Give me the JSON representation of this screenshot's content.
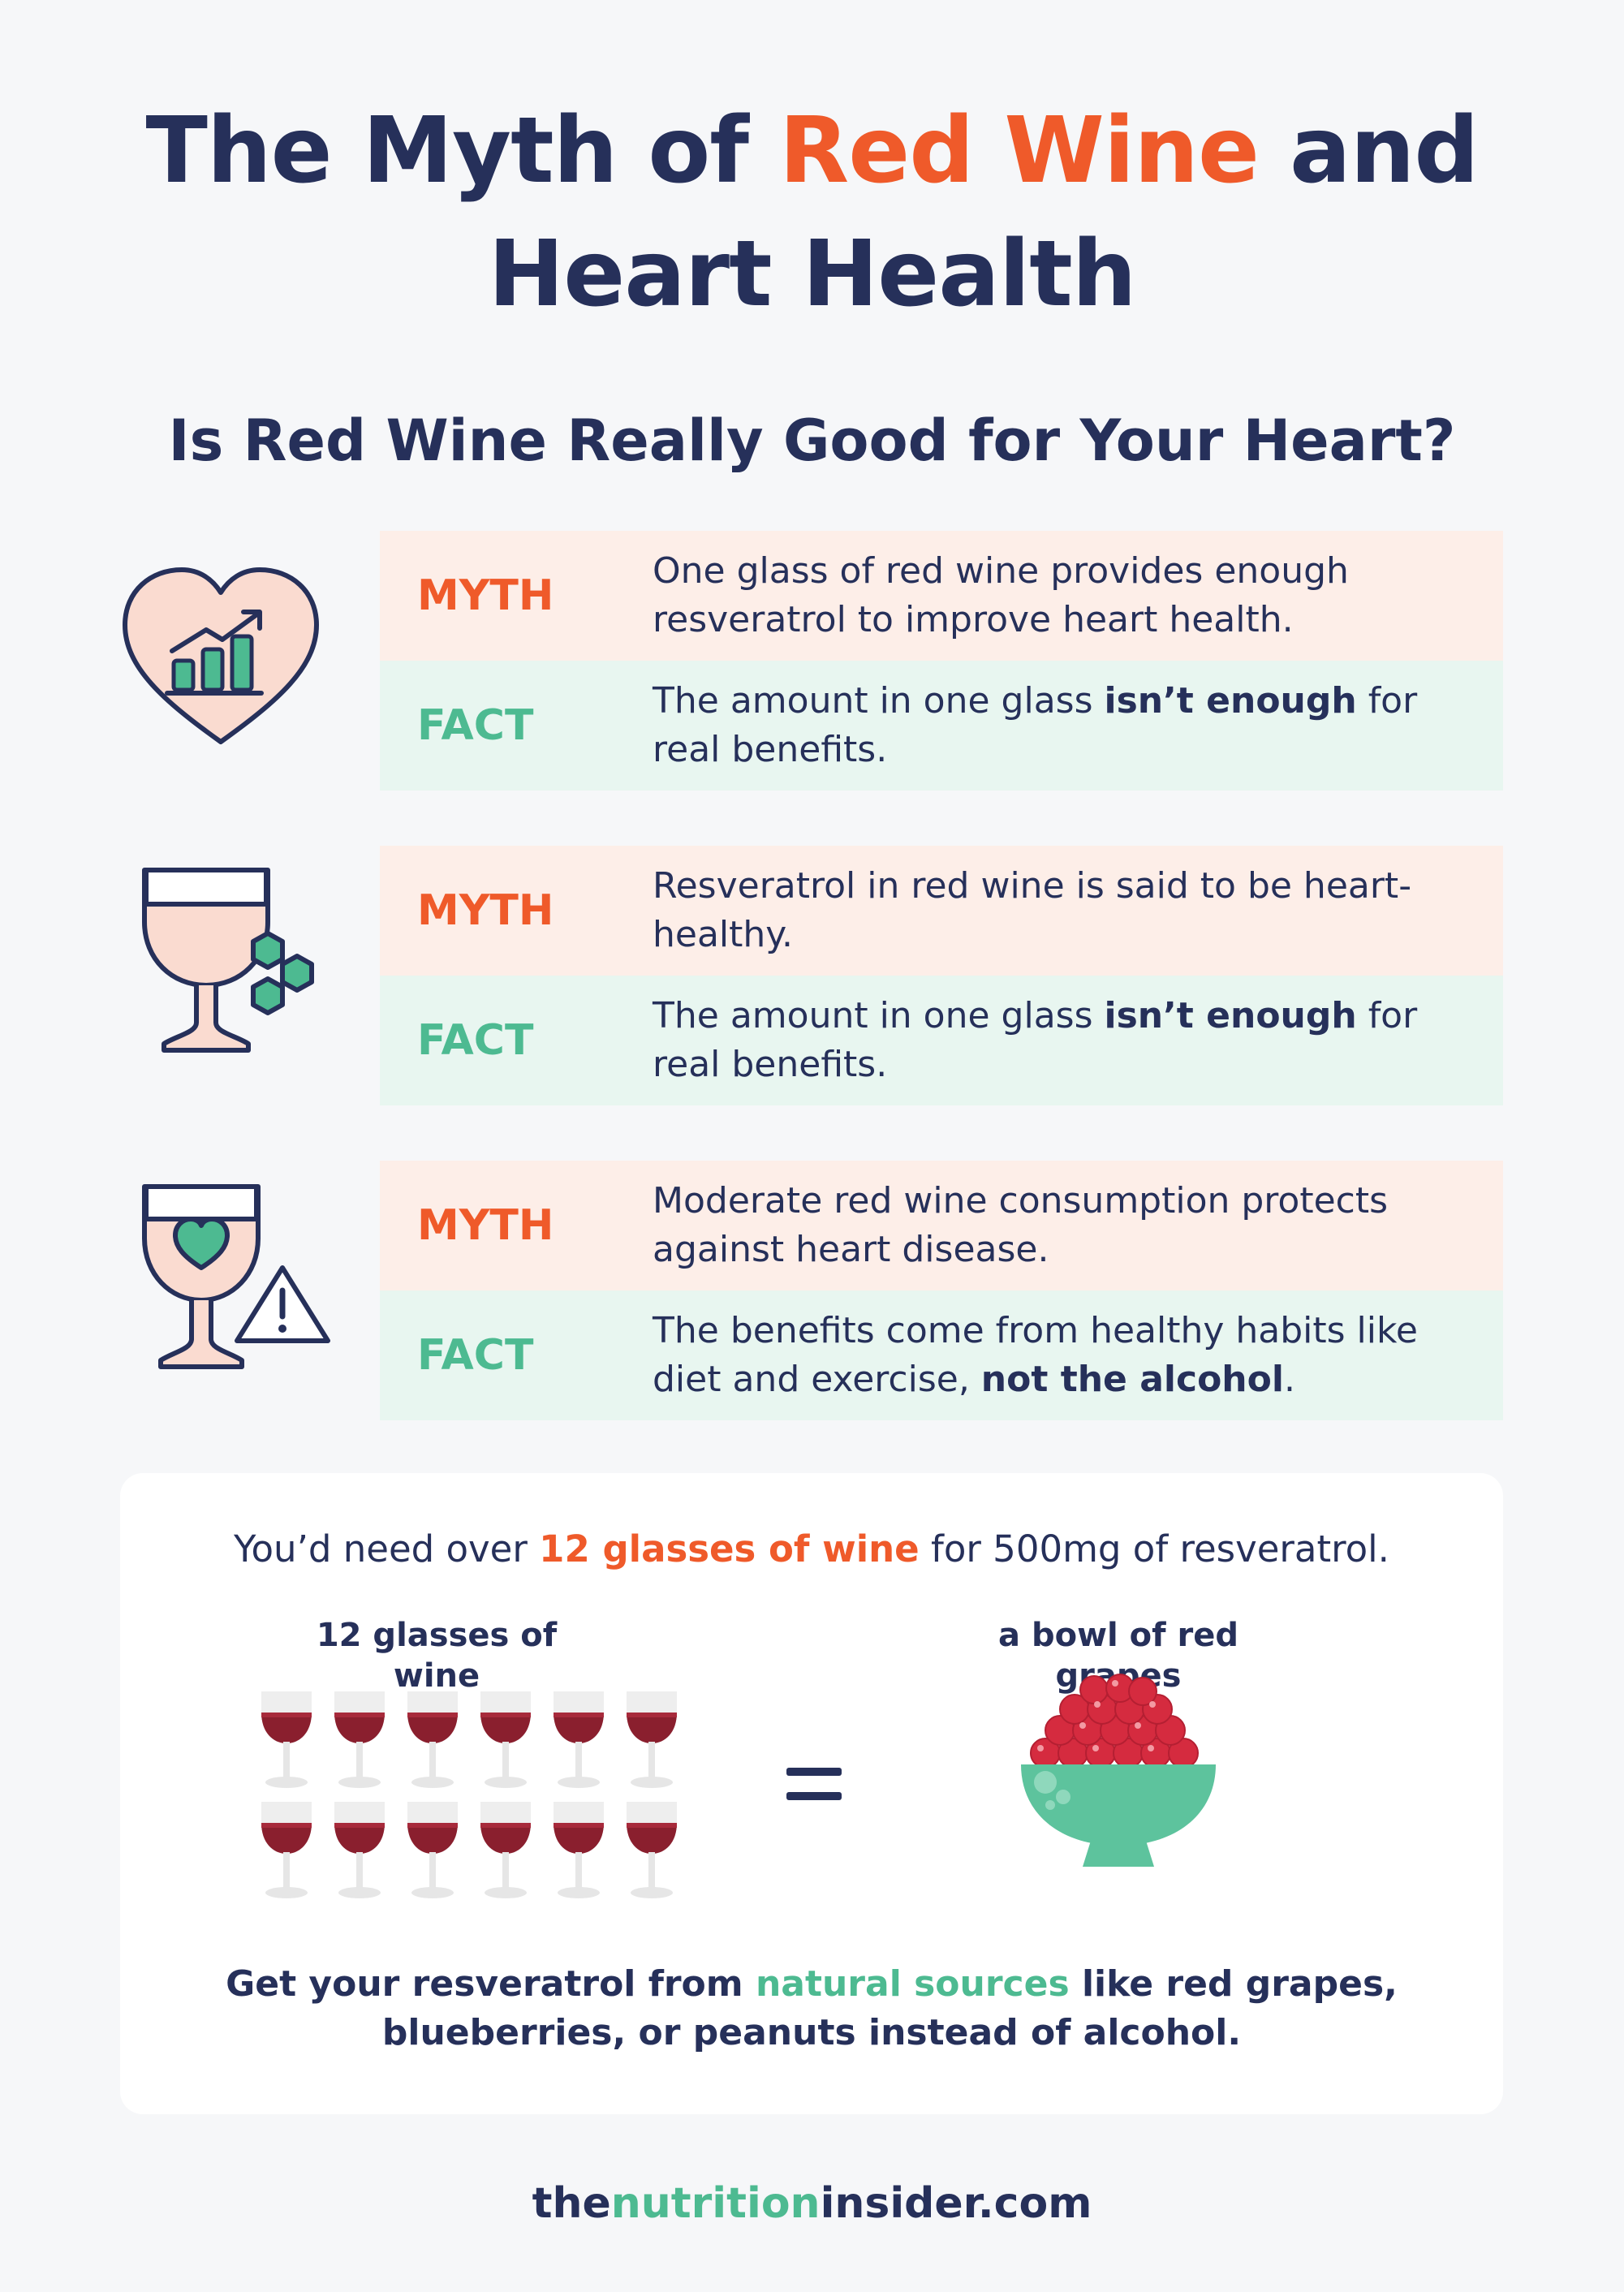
{
  "title": {
    "before": "The Myth of",
    "highlight": "Red Wine",
    "after": "and",
    "line2": "Heart Health"
  },
  "subtitle": "Is Red Wine Really Good for Your Heart?",
  "colors": {
    "navy": "#26305a",
    "orange": "#ef5a2a",
    "green": "#4dba91",
    "myth_bg": "#fdeee8",
    "fact_bg": "#e8f6f0"
  },
  "myth_label": "MYTH",
  "fact_label": "FACT",
  "items": [
    {
      "icon": "heart-chart-icon",
      "myth": "One glass of red wine provides enough resveratrol to improve heart health.",
      "fact": {
        "before": "The amount in one glass ",
        "bold": "isn’t enough",
        "after": " for real benefits."
      }
    },
    {
      "icon": "wine-glass-molecule-icon",
      "myth": "Resveratrol in red wine is said to be heart-healthy.",
      "fact": {
        "before": "The amount in one glass ",
        "bold": "isn’t enough",
        "after": " for real benefits."
      }
    },
    {
      "icon": "wine-glass-warning-icon",
      "myth": "Moderate red wine consumption protects against heart disease.",
      "fact": {
        "before": "The benefits come from healthy habits like diet and exercise, ",
        "bold": "not the alcohol",
        "after": "."
      }
    }
  ],
  "comparison": {
    "line": {
      "before": "You’d need over ",
      "highlight": "12 glasses of wine",
      "after": " for 500mg of resveratrol."
    },
    "left_label": "12 glasses of wine",
    "right_label": "a bowl of red grapes",
    "glass_count": 12,
    "bottom": {
      "before": "Get your resveratrol from ",
      "highlight": "natural sources",
      "after": " like red grapes, blueberries, or peanuts instead of alcohol."
    }
  },
  "footer": {
    "part1": "the",
    "part2": "nutrition",
    "part3": "insider.com"
  }
}
